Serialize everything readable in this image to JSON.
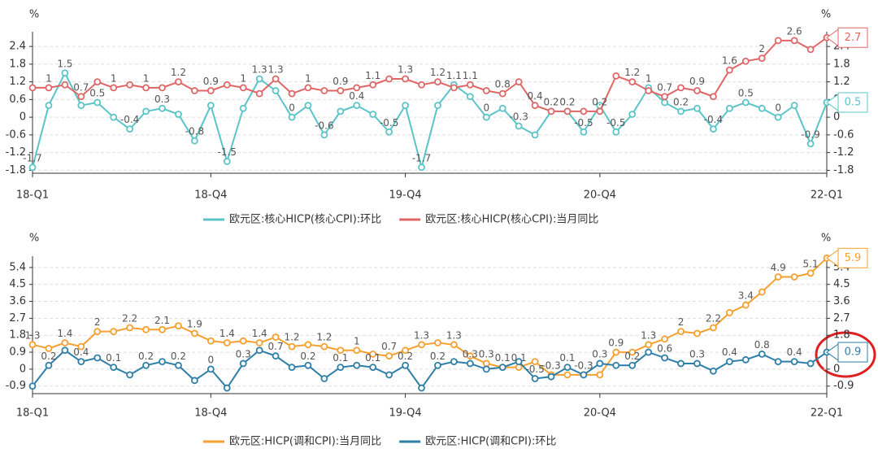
{
  "chart_data": [
    {
      "type": "line",
      "y_unit": "%",
      "categories": [
        "18-Q1",
        null,
        null,
        null,
        null,
        null,
        null,
        null,
        null,
        null,
        null,
        "18-Q4",
        null,
        null,
        null,
        null,
        null,
        null,
        null,
        null,
        null,
        null,
        null,
        "19-Q4",
        null,
        null,
        null,
        null,
        null,
        null,
        null,
        null,
        null,
        null,
        null,
        "20-Q4",
        null,
        null,
        null,
        null,
        null,
        null,
        null,
        null,
        null,
        null,
        null,
        null,
        null,
        "22-Q1"
      ],
      "ylim": [
        -1.9,
        2.9
      ],
      "yticks": [
        -1.8,
        -1.2,
        -0.6,
        0,
        0.6,
        1.2,
        1.8,
        2.4
      ],
      "grid": true,
      "series": [
        {
          "name": "欧元区:核心HICP(核心CPI):环比",
          "color": "#5bc4c8",
          "values": [
            -1.7,
            0.4,
            1.5,
            0.4,
            0.5,
            0,
            -0.4,
            0.2,
            0.3,
            0.1,
            -0.8,
            0.4,
            -1.5,
            0.3,
            1.3,
            0.9,
            0,
            0.4,
            -0.6,
            0.2,
            0.4,
            0.1,
            -0.5,
            0.4,
            -1.7,
            0.4,
            1.1,
            0.7,
            0,
            0.3,
            -0.3,
            -0.6,
            0.2,
            0.2,
            -0.5,
            0.4,
            -0.5,
            0.1,
            1,
            0.5,
            0.2,
            0.3,
            -0.4,
            0.3,
            0.5,
            0.3,
            0,
            0.4,
            -0.9,
            0.5
          ]
        },
        {
          "name": "欧元区:核心HICP(核心CPI):当月同比",
          "color": "#e06666",
          "values": [
            1,
            1,
            1.1,
            0.7,
            1.2,
            1,
            1.1,
            1,
            1,
            1.2,
            0.9,
            0.9,
            1.1,
            1,
            0.8,
            1.3,
            0.8,
            1,
            0.9,
            0.9,
            1,
            1.1,
            1.3,
            1.3,
            1.1,
            1.2,
            1,
            1.1,
            0.9,
            0.8,
            1.2,
            0.4,
            0.2,
            0.2,
            0.2,
            0.2,
            1.4,
            1.2,
            0.9,
            0.7,
            1,
            0.9,
            0.7,
            1.6,
            1.9,
            2,
            2.6,
            2.6,
            2.3,
            2.7
          ]
        }
      ]
    },
    {
      "type": "line",
      "y_unit": "%",
      "categories": [
        "18-Q1",
        null,
        null,
        null,
        null,
        null,
        null,
        null,
        null,
        null,
        null,
        "18-Q4",
        null,
        null,
        null,
        null,
        null,
        null,
        null,
        null,
        null,
        null,
        null,
        "19-Q4",
        null,
        null,
        null,
        null,
        null,
        null,
        null,
        null,
        null,
        null,
        null,
        "20-Q4",
        null,
        null,
        null,
        null,
        null,
        null,
        null,
        null,
        null,
        null,
        null,
        null,
        null,
        "22-Q1"
      ],
      "ylim": [
        -1.3,
        6.0
      ],
      "yticks": [
        -0.9,
        0,
        0.9,
        1.8,
        2.7,
        3.6,
        4.5,
        5.4
      ],
      "grid": true,
      "series": [
        {
          "name": "欧元区:HICP(调和CPI):当月同比",
          "color": "#f5a030",
          "values": [
            1.3,
            1.1,
            1.4,
            1.2,
            2,
            2,
            2.2,
            2.1,
            2.1,
            2.3,
            1.9,
            1.5,
            1.4,
            1.5,
            1.4,
            1.7,
            1.2,
            1.3,
            1.2,
            1,
            1,
            0.8,
            0.7,
            1,
            1.3,
            1.4,
            1.3,
            0.7,
            0.3,
            0.1,
            0.1,
            0.4,
            -0.3,
            -0.3,
            -0.3,
            -0.3,
            0.9,
            0.9,
            1.3,
            1.6,
            2,
            1.9,
            2.2,
            3,
            3.4,
            4.1,
            4.9,
            4.9,
            5.1,
            5.9
          ]
        },
        {
          "name": "欧元区:HICP(调和CPI):环比",
          "color": "#2e7fa8",
          "values": [
            -0.9,
            0.2,
            1,
            0.4,
            0.6,
            0.1,
            -0.3,
            0.2,
            0.4,
            0.2,
            -0.6,
            0,
            -1,
            0.3,
            1,
            0.7,
            0.1,
            0.2,
            -0.5,
            0.1,
            0.2,
            0.1,
            -0.3,
            0.2,
            -1,
            0.2,
            0.4,
            0.3,
            0,
            0.1,
            0.4,
            -0.5,
            -0.4,
            0.1,
            -0.3,
            0.3,
            0.2,
            0.2,
            0.9,
            0.6,
            0.3,
            0.3,
            -0.1,
            0.4,
            0.5,
            0.8,
            0.4,
            0.4,
            0.3,
            0.9
          ]
        }
      ]
    }
  ]
}
